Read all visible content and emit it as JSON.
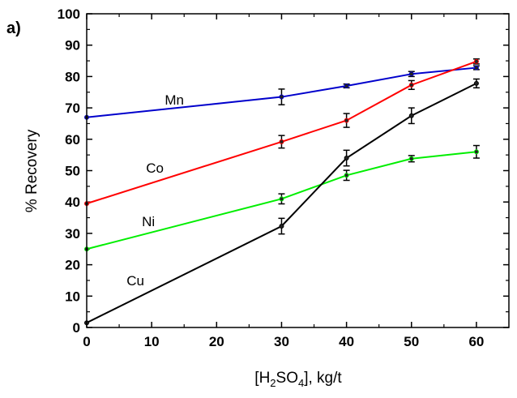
{
  "chart_data": {
    "type": "line",
    "panel_label": "a)",
    "xlabel": "[H2SO4], kg/t",
    "xlabel_parts": {
      "pre": "[H",
      "sub1": "2",
      "mid": "SO",
      "sub2": "4",
      "post": "], kg/t"
    },
    "ylabel": "% Recovery",
    "xlim": [
      0,
      65
    ],
    "ylim": [
      0,
      100
    ],
    "xticks": [
      0,
      10,
      20,
      30,
      40,
      50,
      60
    ],
    "yticks": [
      0,
      10,
      20,
      30,
      40,
      50,
      60,
      70,
      80,
      90,
      100
    ],
    "grid": false,
    "x": [
      0,
      30,
      40,
      50,
      60
    ],
    "series": [
      {
        "name": "Mn",
        "color": "#0000cc",
        "values": [
          67,
          73.5,
          77,
          80.8,
          82.8
        ],
        "errors": [
          0,
          2.5,
          0.6,
          0.8,
          0.6
        ]
      },
      {
        "name": "Co",
        "color": "#ff0000",
        "values": [
          39.5,
          59.2,
          66,
          77.3,
          84.8
        ],
        "errors": [
          0,
          2,
          2.2,
          1.4,
          0.8
        ]
      },
      {
        "name": "Ni",
        "color": "#00ee00",
        "values": [
          25,
          41,
          48.5,
          53.8,
          56
        ],
        "errors": [
          0,
          1.6,
          1.6,
          1,
          2
        ]
      },
      {
        "name": "Cu",
        "color": "#000000",
        "values": [
          1.5,
          32.3,
          54,
          67.5,
          77.8
        ],
        "errors": [
          0,
          2.5,
          2.5,
          2.5,
          1.4
        ]
      }
    ],
    "annotations": [
      {
        "text": "Mn",
        "series": "Mn",
        "x": 13.5,
        "y": 71
      },
      {
        "text": "Co",
        "series": "Co",
        "x": 10.5,
        "y": 49.3
      },
      {
        "text": "Ni",
        "series": "Ni",
        "x": 9.5,
        "y": 32.3
      },
      {
        "text": "Cu",
        "series": "Cu",
        "x": 7.5,
        "y": 13.5
      }
    ]
  }
}
